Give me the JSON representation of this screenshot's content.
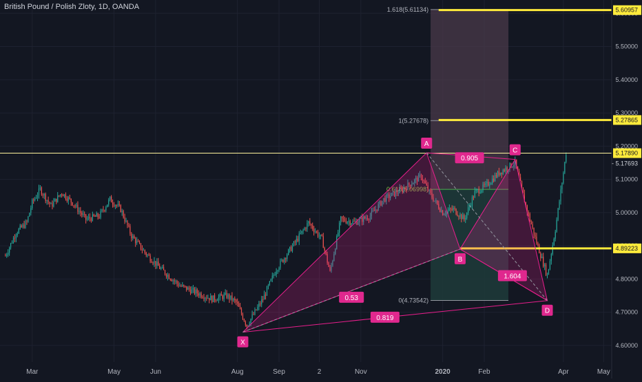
{
  "header": {
    "title": "British Pound / Polish Zloty, 1D, OANDA"
  },
  "colors": {
    "background": "#131722",
    "grid": "#1e2230",
    "axis_text": "#b2b5be",
    "bull": "#26a69a",
    "bear": "#ef5350",
    "accent": "#ffeb3b",
    "pattern": "#e91e8c",
    "label_bg": "#e0288e",
    "fib_bg": "#4a3a4a"
  },
  "chart_data": {
    "type": "candlestick",
    "title": "British Pound / Polish Zloty, 1D, OANDA",
    "xlabel": "",
    "ylabel": "",
    "ylim": [
      4.55,
      5.64
    ],
    "x_ticks": [
      {
        "label": "Mar",
        "day": 0
      },
      {
        "label": "May",
        "day": 61
      },
      {
        "label": "Jun",
        "day": 92
      },
      {
        "label": "Aug",
        "day": 153
      },
      {
        "label": "Sep",
        "day": 184
      },
      {
        "label": "2",
        "day": 214
      },
      {
        "label": "Nov",
        "day": 245
      },
      {
        "label": "2020",
        "day": 306
      },
      {
        "label": "Feb",
        "day": 337
      },
      {
        "label": "Apr",
        "day": 396
      },
      {
        "label": "May",
        "day": 426
      }
    ],
    "y_ticks": [
      4.6,
      4.7,
      4.8,
      4.9,
      5.0,
      5.1,
      5.2,
      5.3,
      5.4,
      5.5,
      5.6
    ],
    "y_tick_labels": [
      "4.60000",
      "4.70000",
      "4.80000",
      "4.90000",
      "5.00000",
      "5.10000",
      "5.20000",
      "5.30000",
      "5.40000",
      "5.50000",
      "5.60000"
    ],
    "price_path": [
      [
        -20,
        4.87
      ],
      [
        -12,
        4.94
      ],
      [
        -4,
        4.97
      ],
      [
        0,
        5.03
      ],
      [
        6,
        5.07
      ],
      [
        14,
        5.02
      ],
      [
        22,
        5.06
      ],
      [
        30,
        5.03
      ],
      [
        40,
        4.98
      ],
      [
        50,
        4.99
      ],
      [
        58,
        5.04
      ],
      [
        66,
        5.01
      ],
      [
        74,
        4.93
      ],
      [
        84,
        4.88
      ],
      [
        96,
        4.83
      ],
      [
        110,
        4.78
      ],
      [
        122,
        4.76
      ],
      [
        134,
        4.74
      ],
      [
        145,
        4.75
      ],
      [
        152,
        4.73
      ],
      [
        160,
        4.66
      ],
      [
        172,
        4.74
      ],
      [
        182,
        4.83
      ],
      [
        196,
        4.91
      ],
      [
        206,
        4.97
      ],
      [
        216,
        4.92
      ],
      [
        222,
        4.82
      ],
      [
        230,
        4.98
      ],
      [
        240,
        4.97
      ],
      [
        252,
        4.99
      ],
      [
        262,
        5.04
      ],
      [
        276,
        5.07
      ],
      [
        290,
        5.11
      ],
      [
        296,
        5.06
      ],
      [
        306,
        5.0
      ],
      [
        314,
        5.01
      ],
      [
        322,
        4.98
      ],
      [
        330,
        5.06
      ],
      [
        338,
        5.08
      ],
      [
        348,
        5.12
      ],
      [
        360,
        5.15
      ],
      [
        368,
        5.02
      ],
      [
        376,
        4.91
      ],
      [
        384,
        4.81
      ],
      [
        390,
        4.95
      ],
      [
        396,
        5.12
      ],
      [
        398,
        5.18
      ]
    ],
    "harmonic_pattern": {
      "points": [
        {
          "label": "X",
          "day": 157,
          "price": 4.64
        },
        {
          "label": "A",
          "day": 294,
          "price": 5.18
        },
        {
          "label": "B",
          "day": 319,
          "price": 4.89
        },
        {
          "label": "C",
          "day": 360,
          "price": 5.16
        },
        {
          "label": "D",
          "day": 384,
          "price": 4.735
        }
      ],
      "ratios": [
        {
          "label": "0.53",
          "day": 238,
          "price": 4.745
        },
        {
          "label": "0.905",
          "day": 326,
          "price": 5.165
        },
        {
          "label": "1.604",
          "day": 358,
          "price": 4.81
        },
        {
          "label": "0.819",
          "day": 263,
          "price": 4.685
        }
      ]
    },
    "fib_levels": [
      {
        "label": "1.618(5.61134)",
        "price": 5.61134
      },
      {
        "label": "1(5.27678)",
        "price": 5.27678
      },
      {
        "label": "0.618(5.06998)",
        "price": 5.06998
      },
      {
        "label": "0(4.73542)",
        "price": 4.73542
      }
    ],
    "horizontal_levels": [
      {
        "label": "5.60957",
        "price": 5.60957
      },
      {
        "label": "5.27865",
        "price": 5.27865
      },
      {
        "label": "5.17890",
        "price": 5.1789
      },
      {
        "label": "4.89223",
        "price": 4.89223
      }
    ],
    "current_price": {
      "label": "5.17693",
      "price": 5.17693
    }
  }
}
